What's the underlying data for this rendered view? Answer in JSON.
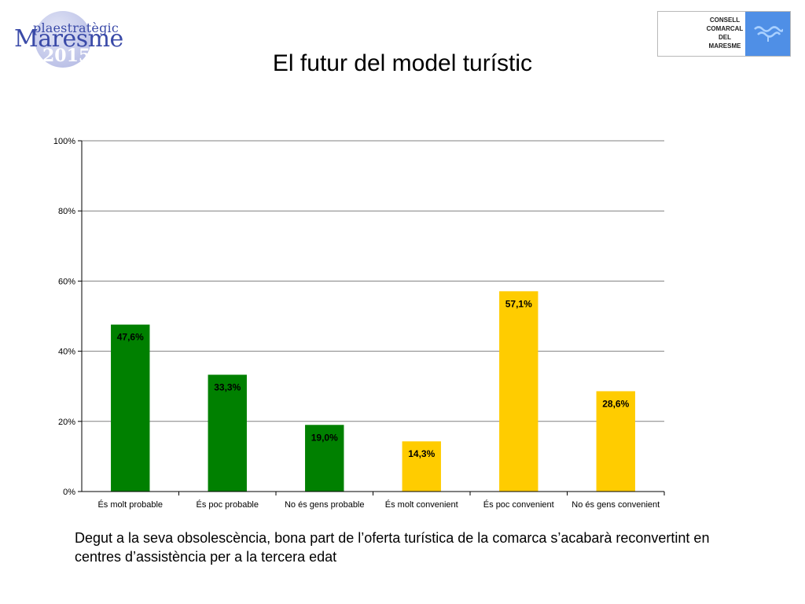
{
  "logo_left": {
    "top": "plaestratègic",
    "main": "Maresme",
    "year": "2015"
  },
  "logo_right": {
    "lines": [
      "CONSELL",
      "COMARCAL",
      "DEL",
      "MARESME"
    ]
  },
  "title": "El futur del model turístic",
  "caption": "Degut a la seva obsolescència, bona part de l’oferta turística de la comarca s’acabarà reconvertint en centres d’assistència per a la tercera edat",
  "colors": {
    "green": "#008000",
    "yellow": "#ffcc00",
    "grid": "#808080"
  },
  "chart_data": {
    "type": "bar",
    "categories": [
      "És molt probable",
      "És poc probable",
      "No és gens probable",
      "És molt convenient",
      "És poc convenient",
      "No és gens convenient"
    ],
    "values": [
      47.6,
      33.3,
      19.0,
      14.3,
      57.1,
      28.6
    ],
    "labels": [
      "47,6%",
      "33,3%",
      "19,0%",
      "14,3%",
      "57,1%",
      "28,6%"
    ],
    "bar_colors": [
      "#008000",
      "#008000",
      "#008000",
      "#ffcc00",
      "#ffcc00",
      "#ffcc00"
    ],
    "ylim": [
      0,
      100
    ],
    "yticks": [
      0,
      20,
      40,
      60,
      80,
      100
    ],
    "ytick_labels": [
      "0%",
      "20%",
      "40%",
      "60%",
      "80%",
      "100%"
    ],
    "grid": true,
    "legend": "none"
  }
}
